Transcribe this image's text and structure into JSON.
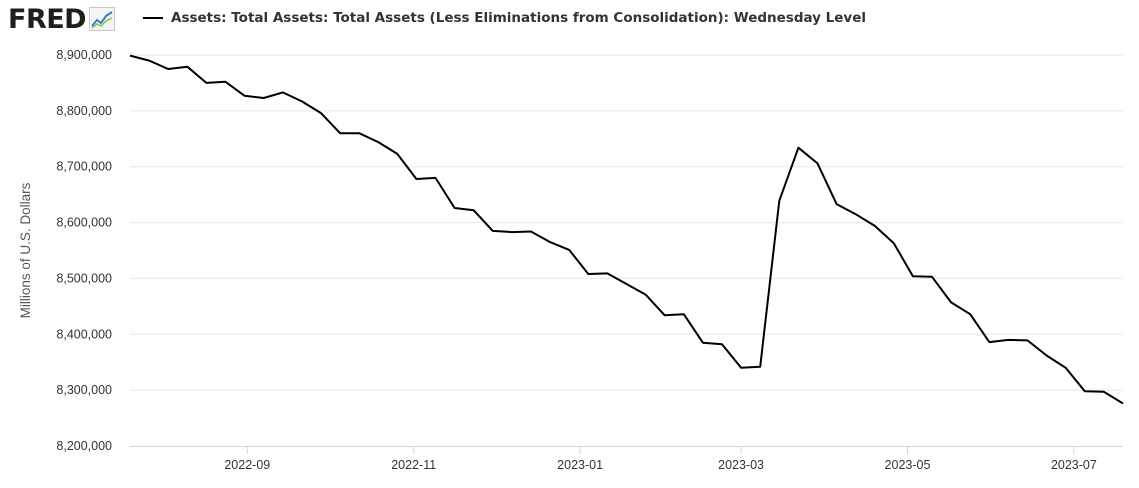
{
  "logo": {
    "text": "FRED"
  },
  "legend": {
    "label": "Assets: Total Assets: Total Assets (Less Eliminations from Consolidation): Wednesday Level"
  },
  "colors": {
    "series": "#000000",
    "grid": "#e6e6e6",
    "axis": "#ccd6eb",
    "tick_text": "#333333",
    "ylabel_text": "#555555"
  },
  "icons": {
    "logo_graph": "fred-graph-icon"
  },
  "chart_data": {
    "type": "line",
    "title": "",
    "ylabel": "Millions of U.S. Dollars",
    "xlabel": "",
    "ylim": [
      8200000,
      8900000
    ],
    "xlim": [
      "2022-07-20",
      "2023-07-19"
    ],
    "y_ticks": [
      8200000,
      8300000,
      8400000,
      8500000,
      8600000,
      8700000,
      8800000,
      8900000
    ],
    "y_tick_labels": [
      "8,200,000",
      "8,300,000",
      "8,400,000",
      "8,500,000",
      "8,600,000",
      "8,700,000",
      "8,800,000",
      "8,900,000"
    ],
    "x_ticks": [
      "2022-09-01",
      "2022-11-01",
      "2023-01-01",
      "2023-03-01",
      "2023-05-01",
      "2023-07-01"
    ],
    "x_tick_labels": [
      "2022-09",
      "2022-11",
      "2023-01",
      "2023-03",
      "2023-05",
      "2023-07"
    ],
    "grid": true,
    "legend_position": "top",
    "series": [
      {
        "name": "Assets: Total Assets: Total Assets (Less Eliminations from Consolidation): Wednesday Level",
        "x": [
          "2022-07-20",
          "2022-07-27",
          "2022-08-03",
          "2022-08-10",
          "2022-08-17",
          "2022-08-24",
          "2022-08-31",
          "2022-09-07",
          "2022-09-14",
          "2022-09-21",
          "2022-09-28",
          "2022-10-05",
          "2022-10-12",
          "2022-10-19",
          "2022-10-26",
          "2022-11-02",
          "2022-11-09",
          "2022-11-16",
          "2022-11-23",
          "2022-11-30",
          "2022-12-07",
          "2022-12-14",
          "2022-12-21",
          "2022-12-28",
          "2023-01-04",
          "2023-01-11",
          "2023-01-18",
          "2023-01-25",
          "2023-02-01",
          "2023-02-08",
          "2023-02-15",
          "2023-02-22",
          "2023-03-01",
          "2023-03-08",
          "2023-03-15",
          "2023-03-22",
          "2023-03-29",
          "2023-04-05",
          "2023-04-12",
          "2023-04-19",
          "2023-04-26",
          "2023-05-03",
          "2023-05-10",
          "2023-05-17",
          "2023-05-24",
          "2023-05-31",
          "2023-06-07",
          "2023-06-14",
          "2023-06-21",
          "2023-06-28",
          "2023-07-05",
          "2023-07-12",
          "2023-07-19"
        ],
        "values": [
          8899000,
          8890000,
          8875000,
          8879000,
          8850000,
          8852000,
          8827000,
          8823000,
          8833000,
          8817000,
          8796000,
          8760000,
          8760000,
          8744000,
          8723000,
          8678000,
          8680000,
          8626000,
          8622000,
          8585000,
          8583000,
          8584000,
          8565000,
          8551000,
          8508000,
          8509000,
          8490000,
          8471000,
          8434000,
          8436000,
          8385000,
          8382000,
          8340000,
          8342000,
          8639000,
          8734000,
          8706000,
          8633000,
          8615000,
          8594000,
          8563000,
          8504000,
          8503000,
          8457000,
          8436000,
          8386000,
          8390000,
          8389000,
          8362000,
          8340000,
          8298000,
          8297000,
          8276000
        ]
      }
    ]
  }
}
